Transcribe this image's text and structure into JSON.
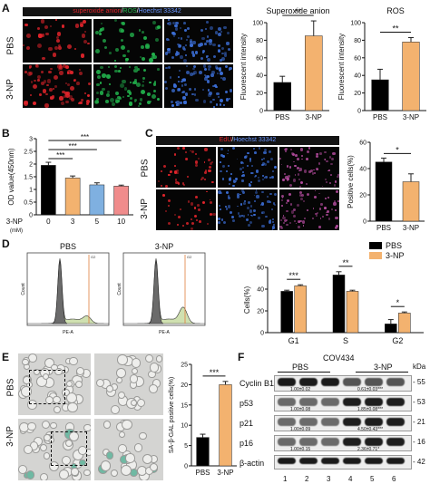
{
  "figure": {
    "panels": {
      "A": "A",
      "B": "B",
      "C": "C",
      "D": "D",
      "E": "E",
      "F": "F"
    },
    "panel_a": {
      "header": {
        "part1": "superoxide anion",
        "sep1": "/",
        "part2": "ROS",
        "sep2": "/",
        "part3": "Hoechst 33342"
      },
      "rows": [
        "PBS",
        "3-NP"
      ],
      "colors": {
        "red": "#e0242b",
        "green": "#22b14c",
        "blue": "#3c6fd8"
      }
    },
    "panel_c": {
      "header": {
        "part1": "EdU",
        "sep1": "/",
        "part2": "Hoechst 33342"
      },
      "rows": [
        "PBS",
        "3-NP"
      ]
    },
    "panel_d": {
      "histograms": [
        {
          "title": "PBS",
          "xlabel": "PE-A",
          "ylabel": "Count",
          "gate": "G2"
        },
        {
          "title": "3-NP",
          "xlabel": "PE-A",
          "ylabel": "Count",
          "gate": "G2"
        }
      ]
    },
    "panel_e": {
      "rows": [
        "PBS",
        "3-NP"
      ]
    },
    "panel_f": {
      "title": "COV434",
      "groups": [
        "PBS",
        "3-NP"
      ],
      "unit": "kDa",
      "lanes": [
        "1",
        "2",
        "3",
        "4",
        "5",
        "6"
      ],
      "proteins": [
        {
          "name": "Cyclin B1",
          "kda": "55",
          "left": "1.00±0.02",
          "right": "0.61±0.03",
          "sig": "***"
        },
        {
          "name": "p53",
          "kda": "53",
          "left": "1.00±0.08",
          "right": "1.85±0.08",
          "sig": "***"
        },
        {
          "name": "p21",
          "kda": "21",
          "left": "1.00±0.09",
          "right": "4.50±0.43",
          "sig": "***"
        },
        {
          "name": "p16",
          "kda": "16",
          "left": "1.00±0.15",
          "right": "2.36±0.71",
          "sig": "*"
        },
        {
          "name": "β-actin",
          "kda": "42",
          "left": "",
          "right": "",
          "sig": ""
        }
      ]
    },
    "colors": {
      "black_bar": "#000000",
      "orange_bar": "#f3b26f",
      "blue_bar": "#7fb0e0",
      "pink_bar": "#f08c8c"
    }
  },
  "chart_data": [
    {
      "type": "bar",
      "id": "superoxide",
      "title": "Superoxide anion",
      "ylabel": "Fluorescent intensity",
      "categories": [
        "PBS",
        "3-NP"
      ],
      "values": [
        32,
        85
      ],
      "errors": [
        7,
        17
      ],
      "ylim": [
        0,
        100
      ],
      "yticks": [
        0,
        20,
        40,
        60,
        80,
        100
      ],
      "significance": "**"
    },
    {
      "type": "bar",
      "id": "ros",
      "title": "ROS",
      "ylabel": "Fluorescent intensity",
      "categories": [
        "PBS",
        "3-NP"
      ],
      "values": [
        35,
        78
      ],
      "errors": [
        12,
        5
      ],
      "ylim": [
        0,
        100
      ],
      "yticks": [
        0,
        20,
        40,
        60,
        80,
        100
      ],
      "significance": "**"
    },
    {
      "type": "bar",
      "id": "od",
      "ylabel": "OD value(450nm)",
      "xaxis_title": "3-NP",
      "xaxis_unit": "(mM)",
      "categories": [
        "0",
        "3",
        "5",
        "10"
      ],
      "values": [
        1.95,
        1.45,
        1.18,
        1.13
      ],
      "errors": [
        0.12,
        0.08,
        0.08,
        0.04
      ],
      "ylim": [
        0,
        3.0
      ],
      "yticks": [
        0,
        0.5,
        1.0,
        1.5,
        2.0,
        2.5,
        3.0
      ],
      "significance": [
        "***",
        "***",
        "***"
      ]
    },
    {
      "type": "bar",
      "id": "edu",
      "ylabel": "Positive cells(%)",
      "categories": [
        "PBS",
        "3-NP"
      ],
      "values": [
        45,
        30
      ],
      "errors": [
        3,
        6
      ],
      "ylim": [
        0,
        60
      ],
      "yticks": [
        0,
        20,
        40,
        60
      ],
      "significance": "*"
    },
    {
      "type": "bar",
      "id": "cellcycle",
      "ylabel": "Cells(%)",
      "categories": [
        "G1",
        "S",
        "G2"
      ],
      "series": [
        {
          "name": "PBS",
          "values": [
            38,
            53,
            8
          ],
          "errors": [
            1,
            3,
            4
          ]
        },
        {
          "name": "3-NP",
          "values": [
            43,
            38,
            18
          ],
          "errors": [
            1,
            1,
            1
          ]
        }
      ],
      "ylim": [
        0,
        60
      ],
      "yticks": [
        0,
        20,
        40,
        60
      ],
      "significance": [
        "***",
        "**",
        "*"
      ],
      "legend": "top-right"
    },
    {
      "type": "bar",
      "id": "sagal",
      "ylabel": "SA-β-GAL positive cells(%)",
      "categories": [
        "PBS",
        "3-NP"
      ],
      "values": [
        7,
        20
      ],
      "errors": [
        0.8,
        0.8
      ],
      "ylim": [
        0,
        25
      ],
      "yticks": [
        0,
        5,
        10,
        15,
        20,
        25
      ],
      "significance": "***"
    }
  ]
}
